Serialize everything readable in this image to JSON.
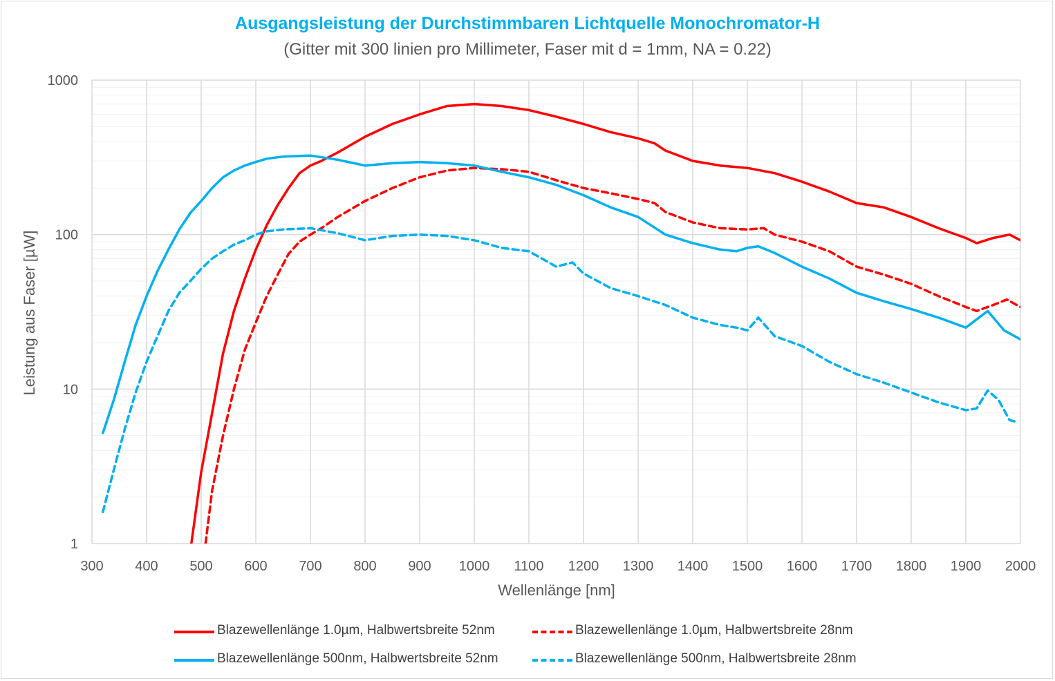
{
  "chart_data": {
    "type": "line",
    "title": "Ausgangsleistung der Durchstimmbaren Lichtquelle Monochromator-H",
    "subtitle": "(Gitter mit 300 linien pro Millimeter, Faser mit d = 1mm, NA = 0.22)",
    "xlabel": "Wellenlänge [nm]",
    "ylabel": "Leistung aus Faser [µW]",
    "xlim": [
      300,
      2000
    ],
    "ylim": [
      1,
      1000
    ],
    "yscale": "log",
    "grid": true,
    "xticks": [
      "300",
      "400",
      "500",
      "600",
      "700",
      "800",
      "900",
      "1000",
      "1100",
      "1200",
      "1300",
      "1400",
      "1500",
      "1600",
      "1700",
      "1800",
      "1900",
      "2000"
    ],
    "yticks": [
      "1",
      "10",
      "100",
      "1000"
    ],
    "legend_position": "bottom",
    "colors": {
      "red": "#ff0000",
      "blue": "#00b0f0"
    },
    "series": [
      {
        "name": "Blazewellenlänge 1.0µm, Halbwertsbreite 52nm",
        "color": "#ff0000",
        "dash": "solid",
        "x": [
          482,
          500,
          520,
          540,
          560,
          580,
          600,
          620,
          640,
          660,
          680,
          700,
          720,
          750,
          800,
          850,
          900,
          950,
          1000,
          1050,
          1100,
          1150,
          1200,
          1250,
          1300,
          1330,
          1350,
          1400,
          1450,
          1500,
          1550,
          1600,
          1650,
          1700,
          1750,
          1800,
          1850,
          1900,
          1920,
          1950,
          1980,
          2000
        ],
        "y": [
          1.0,
          2.9,
          7.0,
          17,
          32,
          52,
          80,
          115,
          155,
          200,
          250,
          280,
          300,
          340,
          430,
          520,
          600,
          680,
          700,
          680,
          640,
          580,
          520,
          460,
          420,
          390,
          350,
          300,
          280,
          270,
          250,
          220,
          190,
          160,
          150,
          130,
          110,
          95,
          88,
          95,
          100,
          92
        ]
      },
      {
        "name": "Blazewellenlänge 1.0µm, Halbwertsbreite 28nm",
        "color": "#ff0000",
        "dash": "dashed",
        "x": [
          508,
          520,
          540,
          560,
          580,
          600,
          620,
          640,
          660,
          680,
          700,
          720,
          750,
          800,
          850,
          900,
          950,
          1000,
          1050,
          1100,
          1150,
          1200,
          1250,
          1300,
          1330,
          1350,
          1400,
          1450,
          1500,
          1530,
          1550,
          1600,
          1650,
          1700,
          1750,
          1800,
          1850,
          1900,
          1920,
          1950,
          1975,
          2000
        ],
        "y": [
          1.0,
          2.2,
          5.0,
          10,
          18,
          27,
          40,
          55,
          75,
          90,
          100,
          110,
          130,
          165,
          200,
          235,
          260,
          270,
          265,
          255,
          225,
          200,
          185,
          170,
          160,
          140,
          120,
          110,
          108,
          110,
          100,
          90,
          78,
          62,
          55,
          48,
          40,
          34,
          32,
          35,
          38,
          34
        ]
      },
      {
        "name": "Blazewellenlänge 500nm, Halbwertsbreite 52nm",
        "color": "#00b0f0",
        "dash": "solid",
        "x": [
          320,
          340,
          360,
          380,
          400,
          420,
          440,
          460,
          480,
          500,
          520,
          540,
          560,
          580,
          600,
          620,
          650,
          700,
          750,
          800,
          850,
          900,
          950,
          1000,
          1050,
          1100,
          1150,
          1200,
          1250,
          1300,
          1350,
          1400,
          1450,
          1480,
          1500,
          1520,
          1550,
          1600,
          1650,
          1700,
          1750,
          1800,
          1850,
          1900,
          1940,
          1970,
          2000
        ],
        "y": [
          5.2,
          8.5,
          15,
          26,
          40,
          58,
          80,
          108,
          138,
          165,
          200,
          235,
          260,
          280,
          295,
          310,
          320,
          325,
          305,
          280,
          290,
          295,
          290,
          280,
          255,
          235,
          210,
          180,
          150,
          130,
          100,
          88,
          80,
          78,
          82,
          84,
          76,
          62,
          52,
          42,
          37,
          33,
          29,
          25,
          32,
          24,
          21
        ]
      },
      {
        "name": "Blazewellenlänge 500nm, Halbwertsbreite 28nm",
        "color": "#00b0f0",
        "dash": "dashed",
        "x": [
          320,
          340,
          360,
          380,
          400,
          420,
          440,
          460,
          480,
          500,
          520,
          540,
          560,
          580,
          600,
          620,
          650,
          700,
          750,
          800,
          850,
          900,
          950,
          1000,
          1050,
          1100,
          1130,
          1150,
          1180,
          1200,
          1250,
          1300,
          1350,
          1400,
          1450,
          1480,
          1500,
          1520,
          1550,
          1600,
          1650,
          1700,
          1750,
          1800,
          1850,
          1900,
          1920,
          1940,
          1960,
          1980,
          1995
        ],
        "y": [
          1.6,
          3.0,
          5.5,
          9.5,
          15,
          22,
          32,
          42,
          50,
          60,
          70,
          78,
          86,
          92,
          100,
          105,
          108,
          110,
          102,
          92,
          98,
          100,
          98,
          92,
          82,
          78,
          68,
          62,
          66,
          56,
          45,
          40,
          35,
          29,
          26,
          25,
          24,
          29,
          22,
          19,
          15,
          12.5,
          11,
          9.5,
          8.2,
          7.3,
          7.5,
          9.8,
          8.5,
          6.3,
          6.1
        ]
      }
    ]
  }
}
